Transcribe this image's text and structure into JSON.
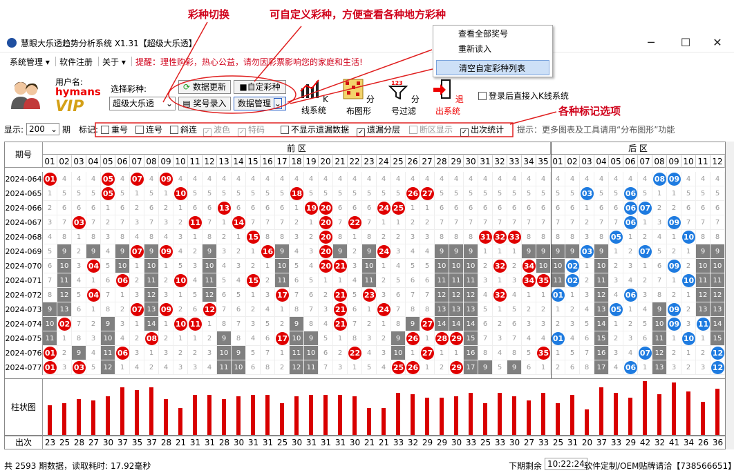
{
  "annotations": {
    "a1": "彩种切换",
    "a2": "可自定义彩种，方便查看各种地方彩种",
    "a3": "各种标记选项"
  },
  "window": {
    "title": "慧眼大乐透趋势分析系统 X1.31【超级大乐透】",
    "min": "─",
    "max": "☐",
    "close": "✕"
  },
  "menu": {
    "sys": "系统管理 ▾",
    "reg": "软件注册",
    "about": "关于 ▾",
    "hint": "提醒：理性购彩，热心公益，请勿因彩票影响您的家庭和生活!"
  },
  "user": {
    "label": "用户名:",
    "name": "hymans",
    "vip": "VIP"
  },
  "toolbar": {
    "select_label": "选择彩种:",
    "select_value": "超级大乐透",
    "update": "数据更新",
    "custom": "自定彩种",
    "entry": "奖号录入",
    "manage": "数据管理",
    "kline": "K线系统",
    "dist": "分布图形",
    "filter": "分号过滤",
    "exit": "退出系统",
    "login_k": "登录后直接入K线系统"
  },
  "popup": {
    "items": [
      "查看全部奖号",
      "重新读入",
      "清空自定彩种列表"
    ]
  },
  "opts": {
    "show": "显示:",
    "show_val": "200",
    "qi": "期",
    "mark": "标记:",
    "items": [
      "重号",
      "连号",
      "斜连",
      "波色",
      "特码",
      "不显示遗漏数据",
      "遗漏分层",
      "断区显示",
      "出次统计"
    ],
    "tip": "提示：更多图表及工具请用“分布图形”功能"
  },
  "grid": {
    "qihao": "期号",
    "front": "前  区",
    "back": "后  区"
  },
  "front_nums": [
    "01",
    "02",
    "03",
    "04",
    "05",
    "06",
    "07",
    "08",
    "09",
    "10",
    "11",
    "12",
    "13",
    "14",
    "15",
    "16",
    "17",
    "18",
    "19",
    "20",
    "21",
    "22",
    "23",
    "24",
    "25",
    "26",
    "27",
    "28",
    "29",
    "30",
    "31",
    "32",
    "33",
    "34",
    "35"
  ],
  "back_nums": [
    "01",
    "02",
    "03",
    "04",
    "05",
    "06",
    "07",
    "08",
    "09",
    "10",
    "11",
    "12"
  ],
  "rows": [
    {
      "id": "2024-064",
      "f": [
        1,
        9,
        5,
        7
      ],
      "b": [
        8,
        9
      ]
    },
    {
      "id": "2024-065",
      "f": [
        5,
        10,
        18,
        26,
        27
      ],
      "b": [
        3,
        6
      ]
    },
    {
      "id": "2024-066",
      "f": [
        13,
        19,
        20,
        24,
        25
      ],
      "b": [
        6,
        7
      ]
    },
    {
      "id": "2024-067",
      "f": [
        3,
        11,
        14,
        20,
        22
      ],
      "b": [
        6,
        9
      ]
    },
    {
      "id": "2024-068",
      "f": [
        15,
        20,
        31,
        32,
        33
      ],
      "b": [
        5,
        10
      ]
    },
    {
      "id": "2024-069",
      "f": [
        7,
        9,
        16,
        20,
        24
      ],
      "b": [
        3,
        7
      ]
    },
    {
      "id": "2024-070",
      "f": [
        4,
        20,
        21,
        32,
        34
      ],
      "b": [
        2,
        9
      ]
    },
    {
      "id": "2024-071",
      "f": [
        6,
        10,
        15,
        34,
        35
      ],
      "b": [
        2,
        10
      ]
    },
    {
      "id": "2024-072",
      "f": [
        4,
        17,
        21,
        23,
        32
      ],
      "b": [
        1,
        6
      ]
    },
    {
      "id": "2024-073",
      "f": [
        7,
        9,
        12,
        21,
        24
      ],
      "b": [
        5,
        9
      ]
    },
    {
      "id": "2024-074",
      "f": [
        2,
        10,
        11,
        21,
        27
      ],
      "b": [
        9,
        11
      ]
    },
    {
      "id": "2024-075",
      "f": [
        8,
        17,
        26,
        28,
        29
      ],
      "b": [
        1,
        10
      ]
    },
    {
      "id": "2024-076",
      "f": [
        1,
        6,
        22,
        27,
        35
      ],
      "b": [
        7,
        12
      ]
    },
    {
      "id": "2024-077",
      "f": [
        1,
        3,
        25,
        26,
        29
      ],
      "b": [
        6,
        12
      ]
    }
  ],
  "counts": [
    "23",
    "25",
    "28",
    "27",
    "30",
    "37",
    "35",
    "37",
    "28",
    "21",
    "31",
    "31",
    "28",
    "30",
    "31",
    "31",
    "25",
    "30",
    "31",
    "31",
    "31",
    "30",
    "21",
    "21",
    "33",
    "32",
    "29",
    "29",
    "30",
    "33",
    "25",
    "33",
    "30",
    "27",
    "33",
    "25",
    "31",
    "20",
    "37",
    "33",
    "29",
    "42",
    "32",
    "41",
    "34",
    "26",
    "36"
  ],
  "bar_label": "柱状图",
  "cnt_label": "出次",
  "status": {
    "left": "共 2593 期数据，读取耗时: 17.92毫秒",
    "next": "下期剩余",
    "time": "10:22:24",
    "right": "软件定制/OEM贴牌请洽【738566651】"
  }
}
